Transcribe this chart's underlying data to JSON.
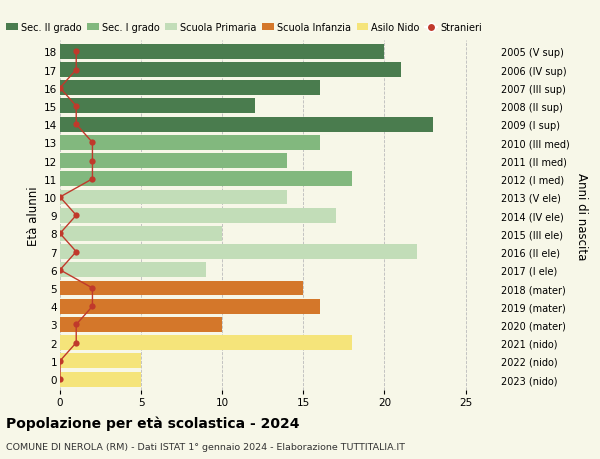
{
  "ages": [
    18,
    17,
    16,
    15,
    14,
    13,
    12,
    11,
    10,
    9,
    8,
    7,
    6,
    5,
    4,
    3,
    2,
    1,
    0
  ],
  "years": [
    "2005 (V sup)",
    "2006 (IV sup)",
    "2007 (III sup)",
    "2008 (II sup)",
    "2009 (I sup)",
    "2010 (III med)",
    "2011 (II med)",
    "2012 (I med)",
    "2013 (V ele)",
    "2014 (IV ele)",
    "2015 (III ele)",
    "2016 (II ele)",
    "2017 (I ele)",
    "2018 (mater)",
    "2019 (mater)",
    "2020 (mater)",
    "2021 (nido)",
    "2022 (nido)",
    "2023 (nido)"
  ],
  "bar_values": [
    20,
    21,
    16,
    12,
    23,
    16,
    14,
    18,
    14,
    17,
    10,
    22,
    9,
    15,
    16,
    10,
    18,
    5,
    5
  ],
  "bar_colors": [
    "#4a7c4e",
    "#4a7c4e",
    "#4a7c4e",
    "#4a7c4e",
    "#4a7c4e",
    "#82b87e",
    "#82b87e",
    "#82b87e",
    "#c2ddb8",
    "#c2ddb8",
    "#c2ddb8",
    "#c2ddb8",
    "#c2ddb8",
    "#d4772a",
    "#d4772a",
    "#d4772a",
    "#f5e47a",
    "#f5e47a",
    "#f5e47a"
  ],
  "stranieri_values": [
    1,
    1,
    0,
    1,
    1,
    2,
    2,
    2,
    0,
    1,
    0,
    1,
    0,
    2,
    2,
    1,
    1,
    0,
    0
  ],
  "legend_labels": [
    "Sec. II grado",
    "Sec. I grado",
    "Scuola Primaria",
    "Scuola Infanzia",
    "Asilo Nido",
    "Stranieri"
  ],
  "legend_colors": [
    "#4a7c4e",
    "#82b87e",
    "#c2ddb8",
    "#d4772a",
    "#f5e47a",
    "#c0392b"
  ],
  "title": "Popolazione per età scolastica - 2024",
  "subtitle": "COMUNE DI NEROLA (RM) - Dati ISTAT 1° gennaio 2024 - Elaborazione TUTTITALIA.IT",
  "ylabel_left": "Età alunni",
  "ylabel_right": "Anni di nascita",
  "xlim": [
    0,
    27
  ],
  "bg_color": "#f7f7e8",
  "stranieri_color": "#c0392b"
}
